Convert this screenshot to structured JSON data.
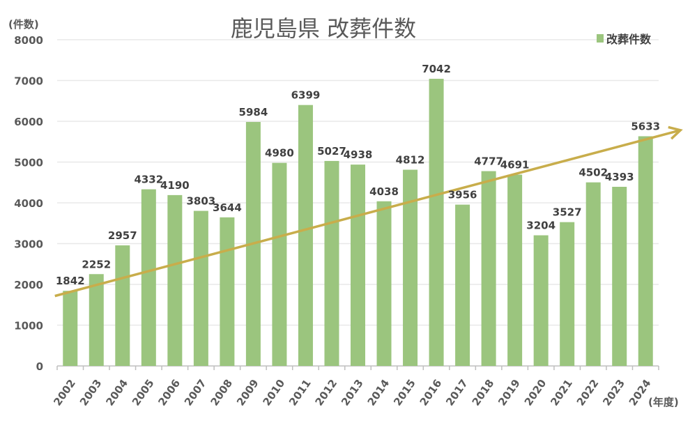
{
  "chart_data": {
    "type": "bar",
    "title": "鹿児島県 改葬件数",
    "ylabel": "(件数)",
    "xlabel": "(年度)",
    "ylim": [
      0,
      8000
    ],
    "yticks": [
      0,
      1000,
      2000,
      3000,
      4000,
      5000,
      6000,
      7000,
      8000
    ],
    "grid": true,
    "legend_position": "top-right",
    "categories": [
      "2002",
      "2003",
      "2004",
      "2005",
      "2006",
      "2007",
      "2008",
      "2009",
      "2010",
      "2011",
      "2012",
      "2013",
      "2014",
      "2015",
      "2016",
      "2017",
      "2018",
      "2019",
      "2020",
      "2021",
      "2022",
      "2023",
      "2024"
    ],
    "series": [
      {
        "name": "改葬件数",
        "color": "#9bc57e",
        "values": [
          1842,
          2252,
          2957,
          4332,
          4190,
          3803,
          3644,
          5984,
          4980,
          6399,
          5027,
          4938,
          4038,
          4812,
          7042,
          3956,
          4777,
          4691,
          3204,
          3527,
          4502,
          4393,
          5633
        ]
      }
    ],
    "trend_arrow": {
      "color": "#c8ad4b",
      "from": {
        "x": "2002",
        "y": 1750
      },
      "to": {
        "x": "2024",
        "y": 5850
      }
    }
  }
}
